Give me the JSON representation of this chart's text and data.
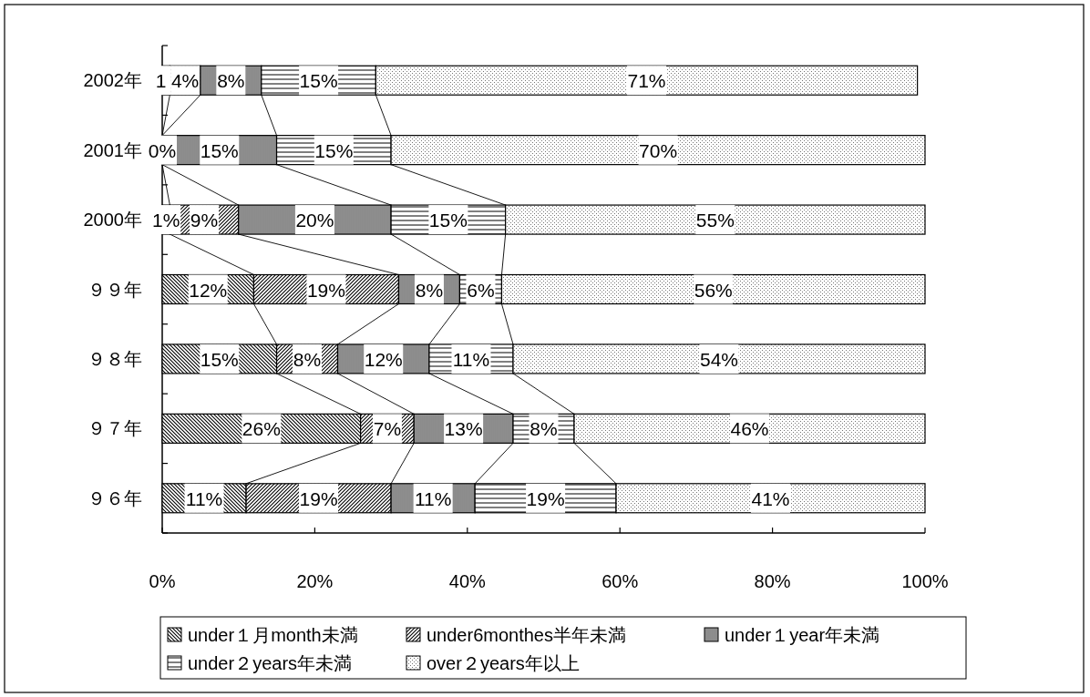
{
  "chart_data": {
    "type": "bar",
    "orientation": "horizontal",
    "stacked": true,
    "categories": [
      "2002年",
      "2001年",
      "2000年",
      "９９年",
      "９８年",
      "９７年",
      "９６年"
    ],
    "series": [
      {
        "name": "under１月month未満",
        "color": "#000000",
        "values": [
          1,
          0,
          1,
          12,
          15,
          26,
          11
        ],
        "value_labels": [
          "1",
          "0%",
          "1%",
          "12%",
          "15%",
          "26%",
          "11%"
        ]
      },
      {
        "name": "under6monthes半年未満",
        "color": "#000000",
        "values": [
          4,
          null,
          9,
          19,
          8,
          7,
          19
        ],
        "value_labels": [
          "4%",
          null,
          "9%",
          "19%",
          "8%",
          "7%",
          "19%"
        ]
      },
      {
        "name": "under１year年未満",
        "color": "#000000",
        "values": [
          8,
          15,
          20,
          8,
          12,
          13,
          11
        ],
        "value_labels": [
          "8%",
          "15%",
          "20%",
          "8%",
          "12%",
          "13%",
          "11%"
        ]
      },
      {
        "name": "under２years年未満",
        "color": "#000000",
        "values": [
          15,
          15,
          15,
          5.5,
          11,
          8,
          18.5
        ],
        "value_labels": [
          "15%",
          "15%",
          "15%",
          "6%",
          "11%",
          "8%",
          "19%"
        ]
      },
      {
        "name": "over２years年以上",
        "color": "#000000",
        "values": [
          71,
          70,
          55,
          55.5,
          54,
          46,
          40.5
        ],
        "value_labels": [
          "71%",
          "70%",
          "55%",
          "56%",
          "54%",
          "46%",
          "41%"
        ]
      }
    ],
    "xlim": [
      0,
      100
    ],
    "xticks": [
      {
        "value": 0,
        "label": "0%"
      },
      {
        "value": 20,
        "label": "20%"
      },
      {
        "value": 40,
        "label": "40%"
      },
      {
        "value": 60,
        "label": "60%"
      },
      {
        "value": 80,
        "label": "80%"
      },
      {
        "value": 100,
        "label": "100%"
      }
    ],
    "grid": false,
    "legend": "bottom"
  }
}
